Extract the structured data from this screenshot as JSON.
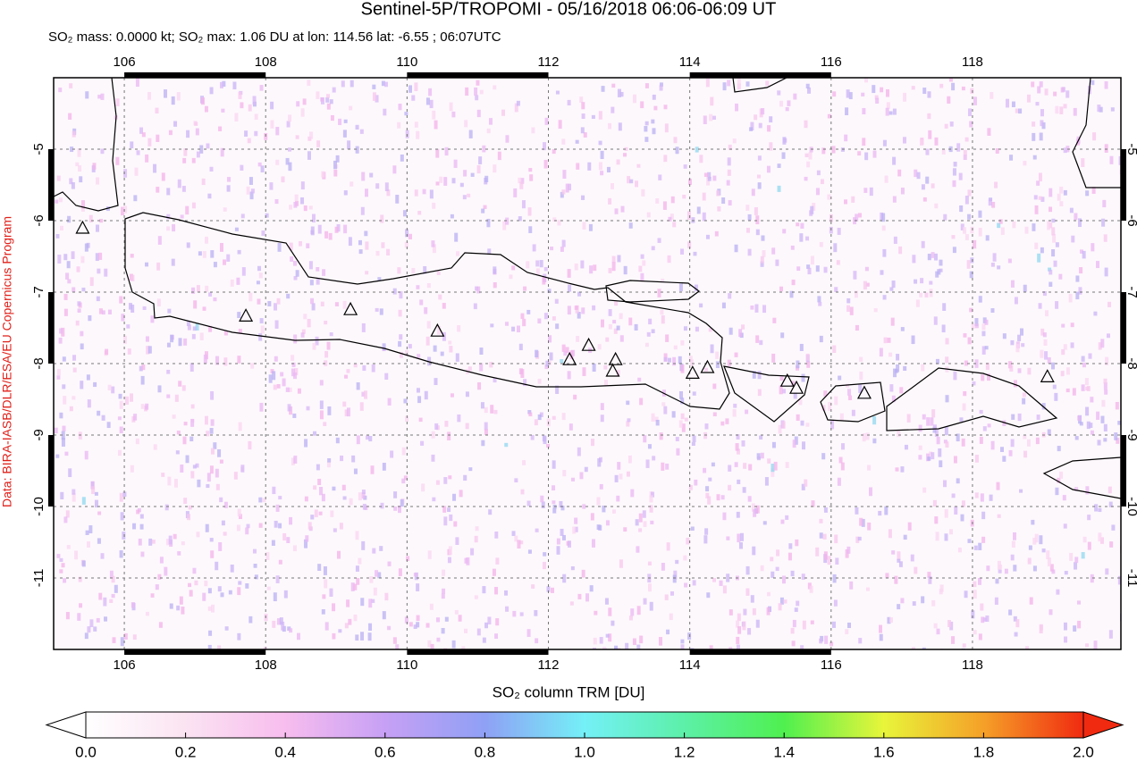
{
  "chart_data": {
    "type": "map",
    "title": "Sentinel-5P/TROPOMI - 05/16/2018 06:06-06:09 UT",
    "subtitle": "SO₂ mass: 0.0000 kt; SO₂ max: 1.06 DU at lon: 114.56 lat: -6.55 ; 06:07UTC",
    "credit": "Data: BIRA-IASB/DLR/ESA/EU Copernicus Program",
    "xlim": [
      105,
      120.1
    ],
    "ylim": [
      -12,
      -4
    ],
    "xticks": [
      106,
      108,
      110,
      112,
      114,
      116,
      118
    ],
    "yticks": [
      -5,
      -6,
      -7,
      -8,
      -9,
      -10,
      -11
    ],
    "grid": true,
    "volcanoes": {
      "lon": [
        105.41,
        107.72,
        109.2,
        110.43,
        112.3,
        112.57,
        112.95,
        112.91,
        114.04,
        114.25,
        115.38,
        115.51,
        116.47,
        119.06
      ],
      "lat": [
        -6.1,
        -7.33,
        -7.24,
        -7.54,
        -7.94,
        -7.74,
        -7.94,
        -8.1,
        -8.13,
        -8.05,
        -8.24,
        -8.34,
        -8.41,
        -8.18
      ]
    },
    "colorbar": {
      "label": "SO₂ column TRM [DU]",
      "lim": [
        0,
        2
      ],
      "ticks": [
        {
          "value": 0,
          "label": "0.0"
        },
        {
          "value": 0.2,
          "label": "0.2"
        },
        {
          "value": 0.4,
          "label": "0.4"
        },
        {
          "value": 0.6,
          "label": "0.6"
        },
        {
          "value": 0.8,
          "label": "0.8"
        },
        {
          "value": 1,
          "label": "1.0"
        },
        {
          "value": 1.2,
          "label": "1.2"
        },
        {
          "value": 1.4,
          "label": "1.4"
        },
        {
          "value": 1.6,
          "label": "1.6"
        },
        {
          "value": 1.8,
          "label": "1.8"
        },
        {
          "value": 2,
          "label": "2.0"
        }
      ]
    }
  }
}
